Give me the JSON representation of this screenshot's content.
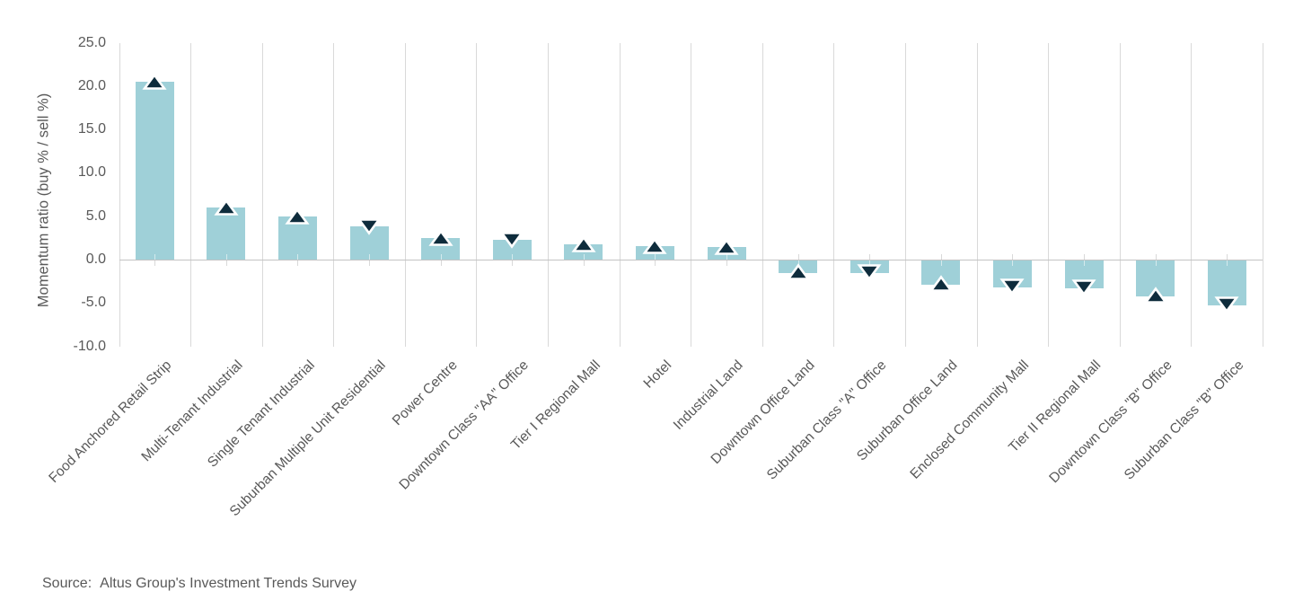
{
  "colors": {
    "background": "#ffffff",
    "bar_fill": "#9fd0d8",
    "marker_fill": "#0e2c3c",
    "marker_outline": "#ffffff",
    "gridline": "#d9d9d9",
    "axis_line": "#c3c3c3",
    "text": "#595959"
  },
  "chart_data": {
    "type": "bar",
    "title": "",
    "xlabel": "",
    "ylabel": "Momentum ratio (buy % / sell %)",
    "ylim": [
      -10.0,
      25.0
    ],
    "ytick_step": 5.0,
    "ytick_labels": [
      "25.0",
      "20.0",
      "15.0",
      "10.0",
      "5.0",
      "0.0",
      "-5.0",
      "-10.0"
    ],
    "grid": "vertical-category-lines-only",
    "legend": "none",
    "x_label_rotation_deg": 45,
    "categories": [
      "Food Anchored Retail Strip",
      "Multi-Tenant Industrial",
      "Single Tenant Industrial",
      "Suburban Multiple Unit Residential",
      "Power Centre",
      "Downtown Class \"AA\" Office",
      "Tier I Regional Mall",
      "Hotel",
      "Industrial Land",
      "Downtown Office Land",
      "Suburban Class \"A\" Office",
      "Suburban Office Land",
      "Enclosed Community Mall",
      "Tier II Regional Mall",
      "Downtown Class \"B\" Office",
      "Suburban Class \"B\" Office"
    ],
    "series": [
      {
        "name": "Momentum ratio (buy % / sell %)",
        "type": "bar",
        "values": [
          20.5,
          6.0,
          5.0,
          3.8,
          2.5,
          2.3,
          1.8,
          1.6,
          1.5,
          -1.4,
          -1.5,
          -2.8,
          -3.1,
          -3.2,
          -4.1,
          -5.2
        ]
      },
      {
        "name": "Momentum direction marker",
        "type": "triangle-marker",
        "directions": [
          "up",
          "up",
          "up",
          "down",
          "up",
          "down",
          "up",
          "up",
          "up",
          "up",
          "down",
          "up",
          "down",
          "down",
          "up",
          "down"
        ]
      }
    ]
  },
  "footer": {
    "source_label": "Source:",
    "source_text": "Altus Group's Investment Trends Survey"
  }
}
